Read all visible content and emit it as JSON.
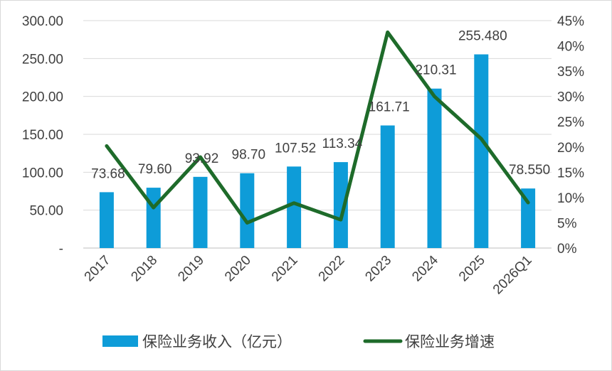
{
  "chart_data": {
    "type": "bar",
    "categories": [
      "2017",
      "2018",
      "2019",
      "2020",
      "2021",
      "2022",
      "2023",
      "2024",
      "2025",
      "2026Q1"
    ],
    "series": [
      {
        "name": "保险业务收入（亿元）",
        "type": "bar",
        "axis": "left",
        "color": "#0e9cd8",
        "values": [
          73.68,
          79.6,
          93.92,
          98.7,
          107.52,
          113.34,
          161.71,
          210.31,
          255.48,
          78.55
        ],
        "labels": [
          "73.68",
          "79.60",
          "93.92",
          "98.70",
          "107.52",
          "113.34",
          "161.71",
          "210.31",
          "255.480",
          "78.550"
        ]
      },
      {
        "name": "保险业务增速",
        "type": "line",
        "axis": "right",
        "color": "#1e6b2a",
        "values": [
          20.2,
          8.0,
          18.0,
          5.0,
          8.9,
          5.6,
          42.7,
          30.0,
          21.6,
          9.0
        ]
      }
    ],
    "y_left": {
      "min": 0,
      "max": 300,
      "ticks": [
        0,
        50,
        100,
        150,
        200,
        250,
        300
      ],
      "tick_labels": [
        "-",
        "50.00",
        "100.00",
        "150.00",
        "200.00",
        "250.00",
        "300.00"
      ]
    },
    "y_right": {
      "min": 0,
      "max": 45,
      "ticks": [
        0,
        5,
        10,
        15,
        20,
        25,
        30,
        35,
        40,
        45
      ],
      "tick_labels": [
        "0%",
        "5%",
        "10%",
        "15%",
        "20%",
        "25%",
        "30%",
        "35%",
        "40%",
        "45%"
      ]
    },
    "gridlines": true,
    "legend_position": "bottom",
    "title": "",
    "xlabel": "",
    "ylabel": ""
  }
}
